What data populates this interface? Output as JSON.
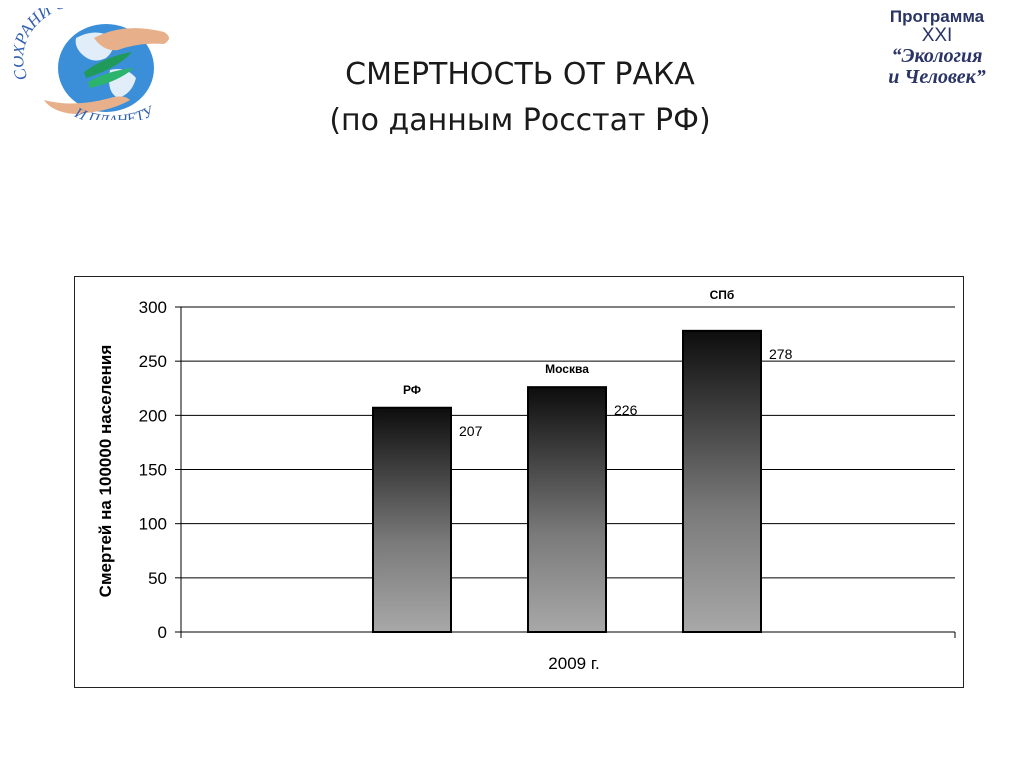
{
  "header": {
    "title_line1": "СМЕРТНОСТЬ ОТ РАКА",
    "title_line2": "(по данным Росстат РФ)"
  },
  "logo_left": {
    "arc_text_top": "СОХРАНИ СЕБЯ",
    "arc_text_bottom": "И ПЛАНЕТУ",
    "icon": "globe-hands-icon",
    "colors": {
      "ocean": "#3b8fd8",
      "land": "#ffffff",
      "leaf": "#1f9a5a",
      "text": "#2f5fb0",
      "hand": "#e8b08a"
    }
  },
  "logo_right": {
    "line1": "Программа",
    "line2": "XXI",
    "line3": "“Экология",
    "line4": "и Человек”"
  },
  "chart_data": {
    "type": "bar",
    "categories": [
      "РФ",
      "Москва",
      "СПб"
    ],
    "values": [
      207,
      226,
      278
    ],
    "data_labels": [
      "207",
      "226",
      "278"
    ],
    "xlabel": "2009 г.",
    "ylabel": "Смертей на 100000 населения",
    "ylim": [
      0,
      300
    ],
    "yticks": [
      0,
      50,
      100,
      150,
      200,
      250,
      300
    ],
    "grid": true,
    "legend": "none",
    "colors": {
      "bar_top": "#0d0d0d",
      "bar_bottom": "#a8a8a8",
      "grid": "#000000",
      "frame": "#222222"
    }
  }
}
